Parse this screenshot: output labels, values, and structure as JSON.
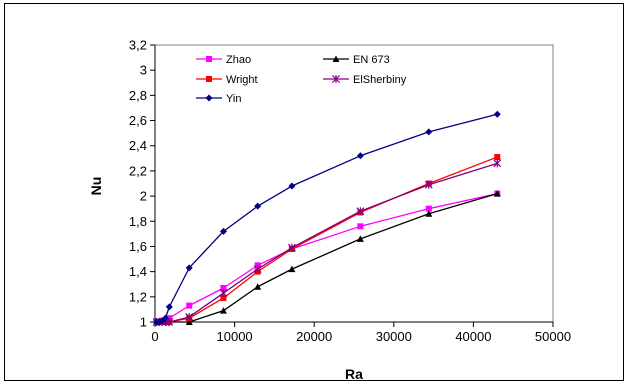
{
  "chart_data": {
    "type": "line",
    "xlabel": "Ra",
    "ylabel": "Nu",
    "xlim": [
      0,
      50000
    ],
    "ylim": [
      1,
      3.2
    ],
    "x_ticks": [
      "0",
      "10000",
      "20000",
      "30000",
      "40000",
      "50000"
    ],
    "y_ticks": [
      "1",
      "1,2",
      "1,4",
      "1,6",
      "1,8",
      "2",
      "2,2",
      "2,4",
      "2,6",
      "2,8",
      "3",
      "3,2"
    ],
    "grid": false,
    "legend_position": "top-left",
    "series": [
      {
        "name": "Zhao",
        "color": "#ff00ff",
        "marker": "square",
        "points": [
          [
            200,
            1.0
          ],
          [
            500,
            1.0
          ],
          [
            900,
            1.01
          ],
          [
            1300,
            1.015
          ],
          [
            1800,
            1.03
          ],
          [
            4300,
            1.13
          ],
          [
            8600,
            1.27
          ],
          [
            12900,
            1.45
          ],
          [
            17200,
            1.58
          ],
          [
            25800,
            1.76
          ],
          [
            34400,
            1.9
          ],
          [
            43000,
            2.02
          ]
        ]
      },
      {
        "name": "EN 673",
        "color": "#000000",
        "marker": "triangle",
        "points": [
          [
            200,
            1.0
          ],
          [
            500,
            1.0
          ],
          [
            900,
            1.0
          ],
          [
            1300,
            1.0
          ],
          [
            1800,
            1.0
          ],
          [
            4300,
            1.0
          ],
          [
            8600,
            1.09
          ],
          [
            12900,
            1.28
          ],
          [
            17200,
            1.42
          ],
          [
            25800,
            1.66
          ],
          [
            34400,
            1.86
          ],
          [
            43000,
            2.02
          ]
        ]
      },
      {
        "name": "Wright",
        "color": "#ff0000",
        "marker": "square",
        "points": [
          [
            200,
            1.0
          ],
          [
            500,
            1.0
          ],
          [
            900,
            1.0
          ],
          [
            1300,
            1.0
          ],
          [
            1800,
            1.0
          ],
          [
            4300,
            1.03
          ],
          [
            8600,
            1.19
          ],
          [
            12900,
            1.4
          ],
          [
            17200,
            1.58
          ],
          [
            25800,
            1.87
          ],
          [
            34400,
            2.1
          ],
          [
            43000,
            2.31
          ]
        ]
      },
      {
        "name": "ElSherbiny",
        "color": "#800080",
        "marker": "star",
        "points": [
          [
            200,
            1.0
          ],
          [
            500,
            1.0
          ],
          [
            900,
            1.0
          ],
          [
            1300,
            1.0
          ],
          [
            1800,
            1.0
          ],
          [
            4300,
            1.04
          ],
          [
            8600,
            1.23
          ],
          [
            12900,
            1.42
          ],
          [
            17200,
            1.59
          ],
          [
            25800,
            1.88
          ],
          [
            34400,
            2.09
          ],
          [
            43000,
            2.26
          ]
        ]
      },
      {
        "name": "Yin",
        "color": "#000080",
        "marker": "diamond",
        "points": [
          [
            200,
            1.0
          ],
          [
            500,
            1.0
          ],
          [
            900,
            1.01
          ],
          [
            1300,
            1.03
          ],
          [
            1800,
            1.12
          ],
          [
            4300,
            1.43
          ],
          [
            8600,
            1.72
          ],
          [
            12900,
            1.92
          ],
          [
            17200,
            2.08
          ],
          [
            25800,
            2.32
          ],
          [
            34400,
            2.51
          ],
          [
            43000,
            2.65
          ]
        ]
      }
    ]
  }
}
